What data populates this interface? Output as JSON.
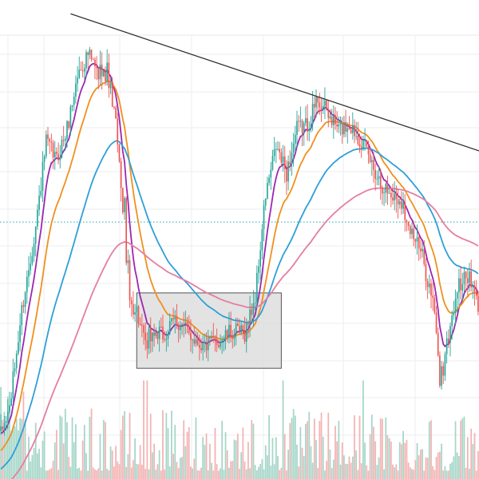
{
  "colors": {
    "background": "#ffffff",
    "grid": "#eceef2",
    "candle_up": "#26a69a",
    "candle_down": "#ef5350",
    "volume_up": "#a5d6c8",
    "volume_down": "#f3b3b3",
    "ma_purple": "#9c27b0",
    "ma_orange": "#f0901e",
    "ma_blue": "#2f9fd8",
    "ma_pink": "#e57ea1",
    "trendline": "#333333",
    "box_fill": "#d9d9d9",
    "box_stroke": "#555555",
    "level_line": "#26a6a6"
  },
  "chart_data": {
    "type": "candlestick",
    "title": "",
    "xlabel": "",
    "ylabel": "",
    "ylim": [
      0,
      100
    ],
    "grid": true,
    "legend": "none",
    "price_anchors": [
      [
        0,
        10
      ],
      [
        5,
        16
      ],
      [
        12,
        38
      ],
      [
        20,
        57
      ],
      [
        26,
        76
      ],
      [
        32,
        72
      ],
      [
        38,
        79
      ],
      [
        44,
        91
      ],
      [
        50,
        96
      ],
      [
        56,
        91
      ],
      [
        60,
        95
      ],
      [
        66,
        80
      ],
      [
        68,
        70
      ],
      [
        71,
        62
      ],
      [
        74,
        40
      ],
      [
        78,
        38
      ],
      [
        82,
        31
      ],
      [
        88,
        33
      ],
      [
        94,
        32
      ],
      [
        100,
        36
      ],
      [
        108,
        33
      ],
      [
        116,
        30
      ],
      [
        124,
        31
      ],
      [
        132,
        33
      ],
      [
        140,
        33
      ],
      [
        146,
        41
      ],
      [
        152,
        64
      ],
      [
        158,
        75
      ],
      [
        164,
        69
      ],
      [
        170,
        79
      ],
      [
        176,
        80
      ],
      [
        182,
        86
      ],
      [
        188,
        82
      ],
      [
        194,
        79
      ],
      [
        200,
        80
      ],
      [
        206,
        77
      ],
      [
        212,
        72
      ],
      [
        218,
        67
      ],
      [
        224,
        64
      ],
      [
        230,
        63
      ],
      [
        236,
        56
      ],
      [
        242,
        50
      ],
      [
        248,
        40
      ],
      [
        252,
        25
      ],
      [
        256,
        30
      ],
      [
        262,
        43
      ],
      [
        268,
        46
      ],
      [
        274,
        39
      ]
    ],
    "candle_count": 275,
    "moving_averages": [
      {
        "color_key": "ma_purple",
        "period": 8
      },
      {
        "color_key": "ma_orange",
        "period": 20
      },
      {
        "color_key": "ma_blue",
        "period": 50
      },
      {
        "color_key": "ma_pink",
        "period": 110
      }
    ],
    "trendline": {
      "from": [
        40,
        105
      ],
      "to": [
        275,
        74
      ]
    },
    "consolidation_box": {
      "from_index": 78,
      "to_index": 161,
      "low": 25,
      "high": 42
    },
    "horizontal_level": 58
  }
}
